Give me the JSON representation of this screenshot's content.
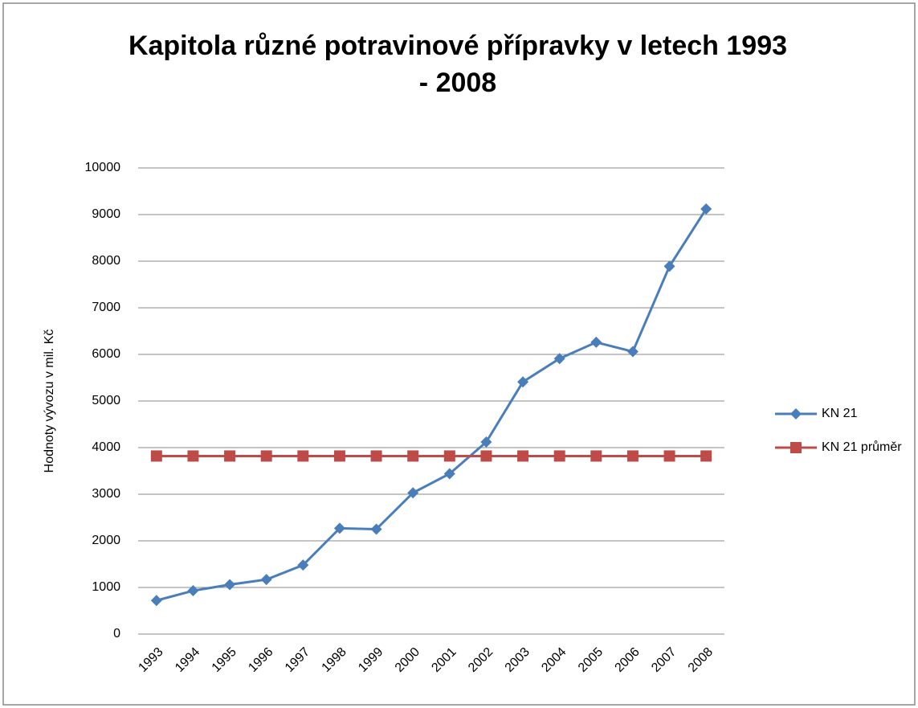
{
  "chart_data": {
    "type": "line",
    "title": "Kapitola různé potravinové přípravky v letech 1993 - 2008",
    "y_label": "Hodnoty vývozu v mil. Kč",
    "categories": [
      "1993",
      "1994",
      "1995",
      "1996",
      "1997",
      "1998",
      "1999",
      "2000",
      "2001",
      "2002",
      "2003",
      "2004",
      "2005",
      "2006",
      "2007",
      "2008"
    ],
    "series": [
      {
        "name": "KN 21",
        "color": "#4a7ebb",
        "marker": "diamond",
        "values": [
          720,
          930,
          1060,
          1170,
          1480,
          2270,
          2250,
          3030,
          3440,
          4120,
          5410,
          5910,
          6260,
          6060,
          7890,
          9120
        ]
      },
      {
        "name": "KN 21 průměr",
        "color": "#be4b48",
        "marker": "square",
        "values": [
          3820,
          3820,
          3820,
          3820,
          3820,
          3820,
          3820,
          3820,
          3820,
          3820,
          3820,
          3820,
          3820,
          3820,
          3820,
          3820
        ]
      }
    ],
    "ylim": [
      0,
      10000
    ],
    "yticks": [
      0,
      1000,
      2000,
      3000,
      4000,
      5000,
      6000,
      7000,
      8000,
      9000,
      10000
    ],
    "grid": true,
    "legend": "right"
  }
}
